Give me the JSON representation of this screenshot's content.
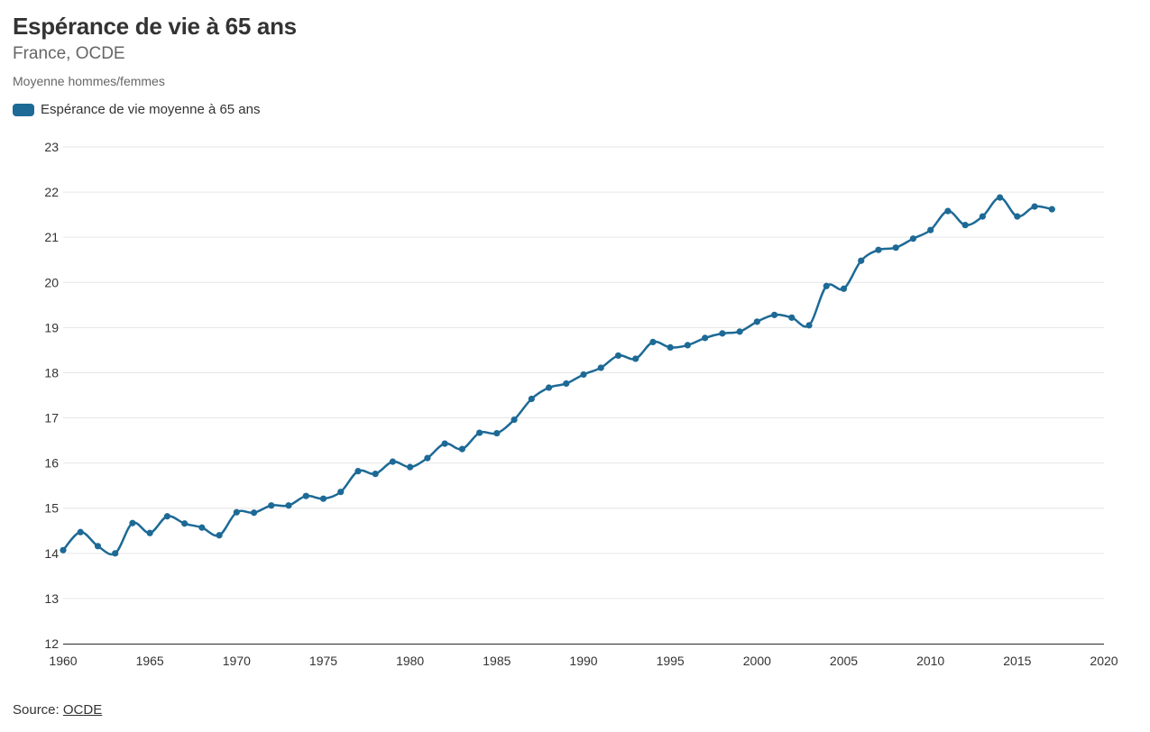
{
  "header": {
    "title": "Espérance de vie à 65 ans",
    "subtitle": "France, OCDE",
    "note": "Moyenne hommes/femmes"
  },
  "footer": {
    "source_label": "Source: ",
    "source_link": "OCDE"
  },
  "colors": {
    "series": "#1d6a96",
    "grid": "#e6e6e6",
    "text": "#333333",
    "muted": "#666666"
  },
  "chart_data": {
    "type": "line",
    "title": "Espérance de vie à 65 ans",
    "subtitle": "France, OCDE",
    "xlabel": "",
    "ylabel": "",
    "xlim": [
      1960,
      2020
    ],
    "ylim": [
      12,
      23
    ],
    "xticks": [
      1960,
      1965,
      1970,
      1975,
      1980,
      1985,
      1990,
      1995,
      2000,
      2005,
      2010,
      2015,
      2020
    ],
    "yticks": [
      12,
      13,
      14,
      15,
      16,
      17,
      18,
      19,
      20,
      21,
      22,
      23
    ],
    "grid": "horizontal",
    "legend_position": "top-left",
    "series": [
      {
        "name": "Espérance de vie moyenne à 65 ans",
        "color": "#1d6a96",
        "x": [
          1960,
          1961,
          1962,
          1963,
          1964,
          1965,
          1966,
          1967,
          1968,
          1969,
          1970,
          1971,
          1972,
          1973,
          1974,
          1975,
          1976,
          1977,
          1978,
          1979,
          1980,
          1981,
          1982,
          1983,
          1984,
          1985,
          1986,
          1987,
          1988,
          1989,
          1990,
          1991,
          1992,
          1993,
          1994,
          1995,
          1996,
          1997,
          1998,
          1999,
          2000,
          2001,
          2002,
          2003,
          2004,
          2005,
          2006,
          2007,
          2008,
          2009,
          2010,
          2011,
          2012,
          2013,
          2014,
          2015,
          2016,
          2017
        ],
        "values": [
          14.07,
          14.47,
          14.16,
          14.0,
          14.67,
          14.45,
          14.82,
          14.66,
          14.57,
          14.4,
          14.91,
          14.9,
          15.06,
          15.06,
          15.27,
          15.21,
          15.36,
          15.82,
          15.76,
          16.03,
          15.91,
          16.11,
          16.43,
          16.31,
          16.67,
          16.66,
          16.96,
          17.42,
          17.67,
          17.76,
          17.96,
          18.11,
          18.38,
          18.31,
          18.68,
          18.56,
          18.61,
          18.77,
          18.87,
          18.91,
          19.13,
          19.28,
          19.22,
          19.05,
          19.92,
          19.86,
          20.48,
          20.72,
          20.77,
          20.97,
          21.16,
          21.58,
          21.27,
          21.46,
          21.88,
          21.46,
          21.68,
          21.62
        ]
      }
    ]
  }
}
